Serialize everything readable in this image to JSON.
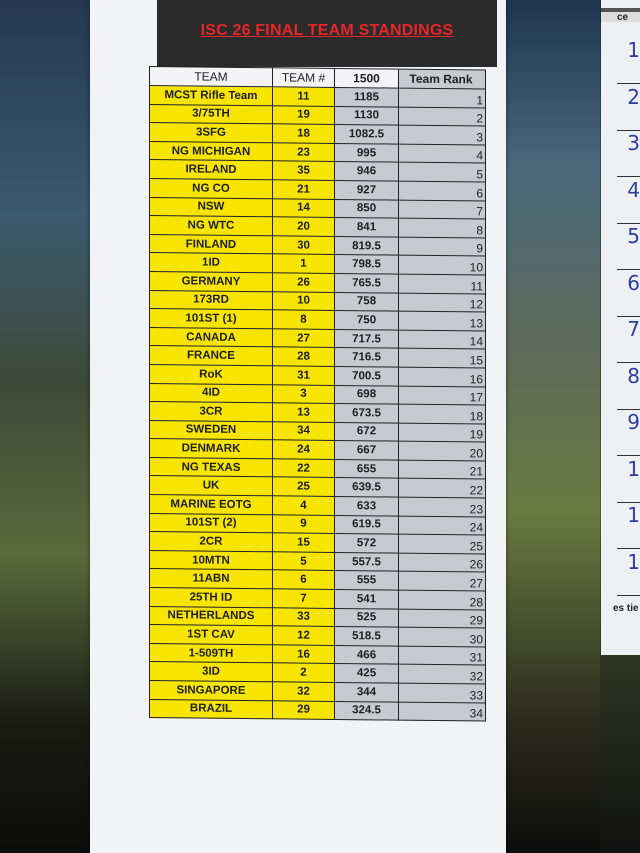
{
  "title": "ISC 26 FINAL TEAM STANDINGS",
  "columns": [
    "TEAM",
    "TEAM #",
    "1500",
    "Team Rank"
  ],
  "rows": [
    [
      "MCST Rifle Team",
      "11",
      "1185",
      "1"
    ],
    [
      "3/75TH",
      "19",
      "1130",
      "2"
    ],
    [
      "3SFG",
      "18",
      "1082.5",
      "3"
    ],
    [
      "NG MICHIGAN",
      "23",
      "995",
      "4"
    ],
    [
      "IRELAND",
      "35",
      "946",
      "5"
    ],
    [
      "NG CO",
      "21",
      "927",
      "6"
    ],
    [
      "NSW",
      "14",
      "850",
      "7"
    ],
    [
      "NG WTC",
      "20",
      "841",
      "8"
    ],
    [
      "FINLAND",
      "30",
      "819.5",
      "9"
    ],
    [
      "1ID",
      "1",
      "798.5",
      "10"
    ],
    [
      "GERMANY",
      "26",
      "765.5",
      "11"
    ],
    [
      "173RD",
      "10",
      "758",
      "12"
    ],
    [
      "101ST (1)",
      "8",
      "750",
      "13"
    ],
    [
      "CANADA",
      "27",
      "717.5",
      "14"
    ],
    [
      "FRANCE",
      "28",
      "716.5",
      "15"
    ],
    [
      "RoK",
      "31",
      "700.5",
      "16"
    ],
    [
      "4ID",
      "3",
      "698",
      "17"
    ],
    [
      "3CR",
      "13",
      "673.5",
      "18"
    ],
    [
      "SWEDEN",
      "34",
      "672",
      "19"
    ],
    [
      "DENMARK",
      "24",
      "667",
      "20"
    ],
    [
      "NG TEXAS",
      "22",
      "655",
      "21"
    ],
    [
      "UK",
      "25",
      "639.5",
      "22"
    ],
    [
      "MARINE EOTG",
      "4",
      "633",
      "23"
    ],
    [
      "101ST (2)",
      "9",
      "619.5",
      "24"
    ],
    [
      "2CR",
      "15",
      "572",
      "25"
    ],
    [
      "10MTN",
      "5",
      "557.5",
      "26"
    ],
    [
      "11ABN",
      "6",
      "555",
      "27"
    ],
    [
      "25TH ID",
      "7",
      "541",
      "28"
    ],
    [
      "NETHERLANDS",
      "33",
      "525",
      "29"
    ],
    [
      "1ST CAV",
      "12",
      "518.5",
      "30"
    ],
    [
      "1-509TH",
      "16",
      "466",
      "31"
    ],
    [
      "3ID",
      "2",
      "425",
      "32"
    ],
    [
      "SINGAPORE",
      "32",
      "344",
      "33"
    ],
    [
      "BRAZIL",
      "29",
      "324.5",
      "34"
    ]
  ],
  "side_sheet": {
    "header": "ce",
    "handwritten": [
      "1",
      "2",
      "3",
      "4",
      "5",
      "6",
      "7",
      "8",
      "9",
      "1",
      "1",
      "1"
    ],
    "footer": "es tie"
  },
  "colors": {
    "title": "#e8262a",
    "team_cells": "#f7e500",
    "score_cells": "#c9cacf",
    "header_band": "#2b2b2b"
  }
}
